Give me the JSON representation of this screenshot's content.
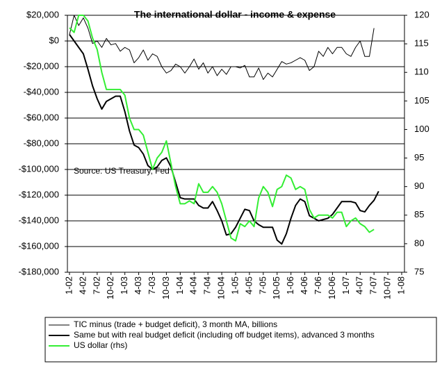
{
  "chart_data": {
    "type": "line",
    "title": "The international dollar - income & expense",
    "annotation": "Source: US Treasury, Fed",
    "categories": [
      "1-02",
      null,
      null,
      "4-02",
      null,
      null,
      "7-02",
      null,
      null,
      "10-02",
      null,
      null,
      "1-03",
      null,
      null,
      "4-03",
      null,
      null,
      "7-03",
      null,
      null,
      "10-03",
      null,
      null,
      "1-04",
      null,
      null,
      "4-04",
      null,
      null,
      "7-04",
      null,
      null,
      "10-04",
      null,
      null,
      "1-05",
      null,
      null,
      "4-05",
      null,
      null,
      "7-05",
      null,
      null,
      "10-05",
      null,
      null,
      "1-06",
      null,
      null,
      "4-06",
      null,
      null,
      "7-06",
      null,
      null,
      "10-06",
      null,
      null,
      "1-07",
      null,
      null,
      "4-07",
      null,
      null,
      "7-07",
      null,
      null,
      "10-07",
      null,
      null,
      "1-08"
    ],
    "series": [
      {
        "name": "TIC minus (trade + budget deficit), 3 month MA, billions",
        "color": "#000000",
        "values": [
          5000,
          20000,
          12000,
          18000,
          10000,
          -2000,
          0,
          -5000,
          2000,
          -3000,
          -2000,
          -8000,
          -5000,
          -7000,
          -17000,
          -13000,
          -7000,
          -15000,
          -10000,
          -12000,
          -20000,
          -25000,
          -23000,
          -18000,
          -20000,
          -25000,
          -20000,
          -14000,
          -22000,
          -17000,
          -25000,
          -20000,
          -27000,
          -22000,
          -26000,
          -20000,
          -20000,
          -21000,
          -19000,
          -28000,
          -28000,
          -21000,
          -30000,
          -25000,
          -28000,
          -22000,
          -16000,
          -18000,
          -17000,
          -15000,
          -13000,
          -15000,
          -23000,
          -20000,
          -8000,
          -12000,
          -5000,
          -10000,
          -5000,
          -5000,
          -10000,
          -12000,
          -5000,
          0,
          -12000,
          -12000,
          10000,
          null,
          null,
          null,
          null,
          null,
          null
        ]
      },
      {
        "name": "Same but with real budget deficit (including off budget items), advanced 3 months",
        "color": "#000000",
        "values": [
          5000,
          0,
          -5000,
          -10000,
          -22000,
          -35000,
          -45000,
          -53000,
          -47000,
          -45000,
          -43000,
          -43000,
          -55000,
          -70000,
          -81000,
          -83000,
          -88000,
          -97000,
          -100000,
          -98000,
          -93000,
          -91000,
          -98000,
          -110000,
          -122000,
          -123000,
          -123000,
          -123000,
          -128000,
          -130000,
          -130000,
          -125000,
          -132000,
          -140000,
          -151000,
          -150000,
          -145000,
          -138000,
          -131000,
          -132000,
          -140000,
          -143000,
          -145000,
          -145000,
          -145000,
          -155000,
          -158000,
          -150000,
          -138000,
          -128000,
          -123000,
          -125000,
          -136000,
          -138000,
          -140000,
          -139000,
          -138000,
          -135000,
          -130000,
          -125000,
          -125000,
          -125000,
          -126000,
          -132000,
          -133000,
          -128000,
          -124000,
          -117000,
          null,
          null,
          null,
          null,
          null
        ]
      },
      {
        "name": "US dollar (rhs)",
        "color": "#33ee33",
        "axis": "y2",
        "values": [
          117.8,
          117,
          120,
          120,
          119,
          116,
          114,
          110,
          107,
          107,
          107,
          107,
          106,
          102,
          100,
          100,
          99,
          96,
          93,
          95,
          96,
          98,
          94,
          90,
          87,
          87,
          87.5,
          87,
          90.5,
          89,
          89,
          90,
          89,
          87,
          84,
          81,
          80.5,
          83.5,
          83,
          84,
          83,
          88,
          90,
          89,
          86.5,
          89.5,
          90,
          92,
          91.5,
          89.5,
          90,
          89.5,
          86,
          84.5,
          85,
          85,
          85,
          84.5,
          85.5,
          85.5,
          83,
          84,
          84.5,
          83.5,
          83,
          82,
          82.5,
          null,
          null,
          null,
          null,
          null,
          null
        ]
      }
    ],
    "ylim": [
      -180000,
      20000
    ],
    "yticks": [
      {
        "value": 20000,
        "label": "$20,000"
      },
      {
        "value": 0,
        "label": "$0"
      },
      {
        "value": -20000,
        "label": "-$20,000"
      },
      {
        "value": -40000,
        "label": "-$40,000"
      },
      {
        "value": -60000,
        "label": "-$60,000"
      },
      {
        "value": -80000,
        "label": "-$80,000"
      },
      {
        "value": -100000,
        "label": "-$100,000"
      },
      {
        "value": -120000,
        "label": "-$120,000"
      },
      {
        "value": -140000,
        "label": "-$140,000"
      },
      {
        "value": -160000,
        "label": "-$160,000"
      },
      {
        "value": -180000,
        "label": "-$180,000"
      }
    ],
    "y2lim": [
      75,
      120
    ],
    "y2ticks": [
      75,
      80,
      85,
      90,
      95,
      100,
      105,
      110,
      115,
      120
    ],
    "grid": true
  }
}
